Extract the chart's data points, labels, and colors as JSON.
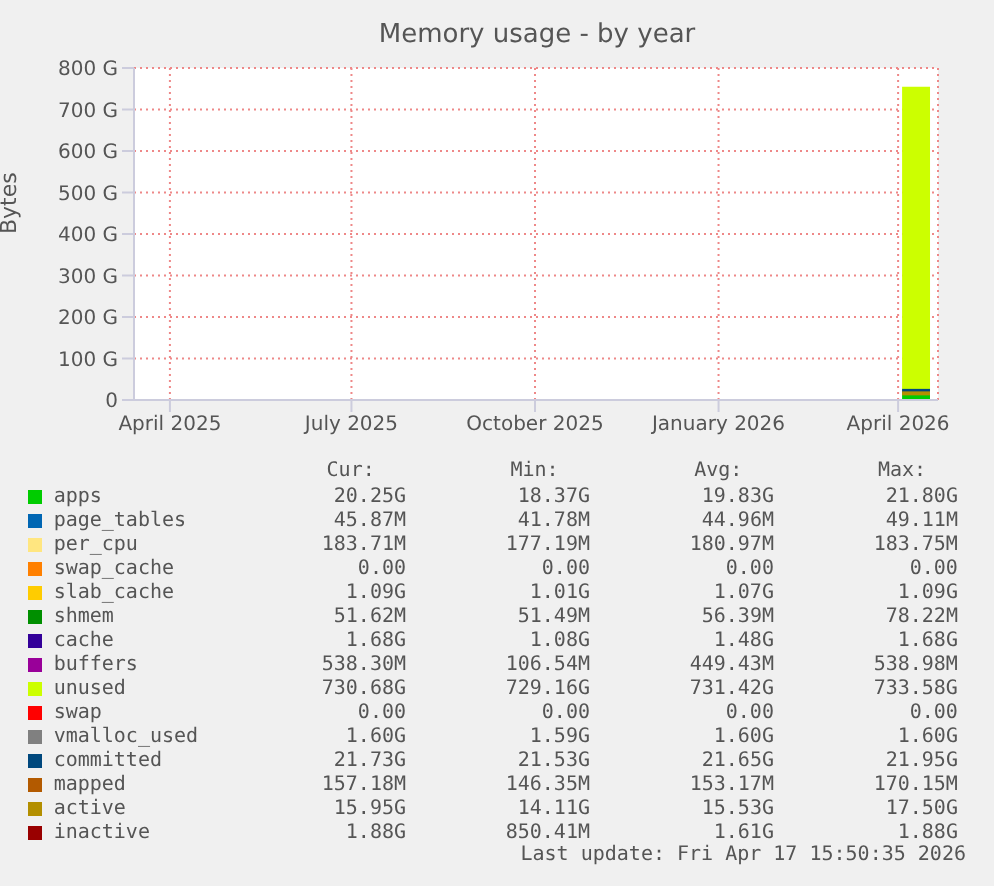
{
  "chart_data": {
    "type": "area",
    "stacked": true,
    "title": "Memory usage - by year",
    "ylabel": "Bytes",
    "x": [
      "2026-04-03",
      "2026-04-17"
    ],
    "xlim": [
      "2025-03-14",
      "2026-04-21"
    ],
    "xticks": [
      {
        "value": "2025-04-01",
        "label": "April 2025"
      },
      {
        "value": "2025-07-01",
        "label": "July 2025"
      },
      {
        "value": "2025-10-01",
        "label": "October 2025"
      },
      {
        "value": "2026-01-01",
        "label": "January 2026"
      },
      {
        "value": "2026-04-01",
        "label": "April 2026"
      }
    ],
    "ylim": [
      0,
      800
    ],
    "yticks": [
      {
        "value": 0,
        "label": "0"
      },
      {
        "value": 100,
        "label": "100 G"
      },
      {
        "value": 200,
        "label": "200 G"
      },
      {
        "value": 300,
        "label": "300 G"
      },
      {
        "value": 400,
        "label": "400 G"
      },
      {
        "value": 500,
        "label": "500 G"
      },
      {
        "value": 600,
        "label": "600 G"
      },
      {
        "value": 700,
        "label": "700 G"
      },
      {
        "value": 800,
        "label": "800 G"
      }
    ],
    "grid": true,
    "legend": "bottom",
    "series": [
      {
        "name": "apps",
        "color": "#00cc00",
        "values": [
          20,
          20
        ]
      },
      {
        "name": "page_tables",
        "color": "#0066b3",
        "values": [
          null,
          null
        ]
      },
      {
        "name": "per_cpu",
        "color": "#ffe680",
        "values": [
          null,
          null
        ]
      },
      {
        "name": "swap_cache",
        "color": "#ff8000",
        "values": [
          null,
          null
        ]
      },
      {
        "name": "slab_cache",
        "color": "#ffcc00",
        "values": [
          null,
          null
        ]
      },
      {
        "name": "shmem",
        "color": "#008f00",
        "values": [
          null,
          null
        ]
      },
      {
        "name": "cache",
        "color": "#330099",
        "values": [
          null,
          null
        ]
      },
      {
        "name": "buffers",
        "color": "#990099",
        "values": [
          null,
          null
        ]
      },
      {
        "name": "unused",
        "color": "#ccff00",
        "values": [
          735,
          735
        ]
      },
      {
        "name": "swap",
        "color": "#ff0000",
        "values": [
          null,
          null
        ]
      },
      {
        "name": "vmalloc_used",
        "type": "line",
        "color": "#808080",
        "values": [
          null,
          null
        ]
      },
      {
        "name": "committed",
        "type": "line",
        "color": "#00487d",
        "values": [
          22,
          22
        ]
      },
      {
        "name": "mapped",
        "type": "line",
        "color": "#b35a00",
        "values": [
          null,
          null
        ]
      },
      {
        "name": "active",
        "type": "line",
        "color": "#b38f00",
        "values": [
          16,
          16
        ]
      },
      {
        "name": "inactive",
        "type": "line",
        "color": "#990000",
        "values": [
          null,
          null
        ]
      }
    ],
    "annotations": [
      "Cur:",
      "Min:",
      "Avg:",
      "Max:",
      "20.25G",
      "18.37G",
      "19.83G",
      "21.80G",
      "45.87M",
      "41.78M",
      "44.96M",
      "49.11M",
      "183.71M",
      "177.19M",
      "180.97M",
      "183.75M",
      "0.00",
      "0.00",
      "0.00",
      "0.00",
      "1.09G",
      "1.01G",
      "1.07G",
      "1.09G",
      "51.62M",
      "51.49M",
      "56.39M",
      "78.22M",
      "1.68G",
      "1.08G",
      "1.48G",
      "1.68G",
      "538.30M",
      "106.54M",
      "449.43M",
      "538.98M",
      "730.68G",
      "729.16G",
      "731.42G",
      "733.58G",
      "0.00",
      "0.00",
      "0.00",
      "0.00",
      "1.60G",
      "1.59G",
      "1.60G",
      "1.60G",
      "21.73G",
      "21.53G",
      "21.65G",
      "21.95G",
      "157.18M",
      "146.35M",
      "153.17M",
      "170.15M",
      "15.95G",
      "14.11G",
      "15.53G",
      "17.50G",
      "1.88G",
      "850.41M",
      "1.61G",
      "1.88G",
      "Last update: Fri Apr 17 15:50:35 2026"
    ]
  }
}
